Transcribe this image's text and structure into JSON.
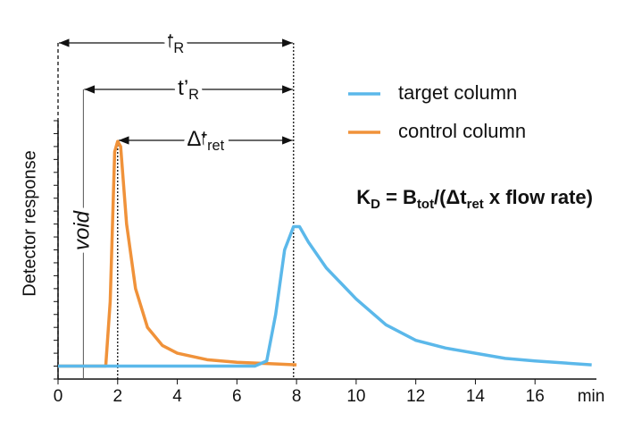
{
  "chart_data": {
    "type": "line",
    "y_label": "Detector response",
    "x_unit": "min",
    "xlim": [
      0,
      18
    ],
    "xticks": [
      0,
      2,
      4,
      6,
      8,
      10,
      12,
      14,
      16
    ],
    "ylim": [
      0,
      100
    ],
    "yticks": [
      0,
      5,
      10,
      15,
      20,
      25,
      30,
      35,
      40,
      45,
      50,
      55,
      60,
      65,
      70,
      75,
      80,
      85,
      90,
      95,
      100
    ],
    "ytick_labels": false,
    "legend": "upper right",
    "series": [
      {
        "name": "target column",
        "color": "#5bb8ea",
        "x": [
          0,
          6.6,
          7,
          7.3,
          7.6,
          7.9,
          8.1,
          8.4,
          9,
          10,
          11,
          12,
          13,
          14,
          15,
          16,
          17.9
        ],
        "values": [
          5,
          5,
          7,
          25,
          50,
          59,
          59,
          53,
          43,
          31,
          21,
          15,
          12,
          10,
          8,
          7,
          5.5
        ]
      },
      {
        "name": "control column",
        "color": "#f0923a",
        "x": [
          0,
          1.6,
          1.75,
          1.9,
          2.0,
          2.1,
          2.3,
          2.6,
          3,
          3.5,
          4,
          5,
          6,
          7,
          8
        ],
        "values": [
          5,
          5,
          30,
          88,
          92,
          90,
          60,
          35,
          20,
          13,
          10,
          7.5,
          6.5,
          6,
          5.5
        ]
      }
    ],
    "reference_lines": [
      {
        "x": 0,
        "style": "dashed"
      },
      {
        "x": 0.85,
        "style": "solid",
        "label": "void"
      },
      {
        "x": 2,
        "style": "dotted"
      },
      {
        "x": 7.9,
        "style": "dotted"
      }
    ],
    "intervals": [
      {
        "from": 0,
        "to": 7.9,
        "parts": [
          {
            "text": "t"
          },
          {
            "sub": "R"
          }
        ]
      },
      {
        "from": 0.85,
        "to": 7.9,
        "parts": [
          {
            "text": "t’"
          },
          {
            "sub": "R"
          }
        ]
      },
      {
        "from": 2,
        "to": 7.9,
        "parts": [
          {
            "text": "Δt"
          },
          {
            "sub": "ret"
          }
        ]
      }
    ],
    "formula": [
      {
        "text": "K"
      },
      {
        "sub": "D"
      },
      {
        "text": " = B"
      },
      {
        "sub": "tot"
      },
      {
        "text": "/(Δt"
      },
      {
        "sub": "ret"
      },
      {
        "text": " x flow rate)"
      }
    ]
  }
}
